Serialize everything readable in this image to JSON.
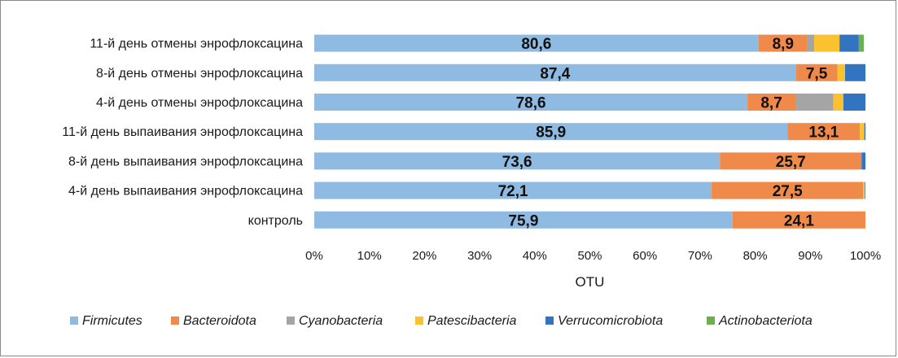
{
  "chart_data": {
    "type": "bar",
    "orientation": "horizontal",
    "stacked": "percent",
    "categories": [
      "11-й день отмены энрофлоксацина",
      "8-й день отмены энрофлоксацина",
      "4-й день отмены энрофлоксацина",
      "11-й день выпаивания энрофлоксацина",
      "8-й день выпаивания энрофлоксацина",
      "4-й день выпаивания энрофлоксацина",
      "контроль"
    ],
    "series": [
      {
        "name": "Firmicutes",
        "color": "#8fbbe3",
        "values": [
          80.6,
          87.4,
          78.6,
          85.9,
          73.6,
          72.1,
          75.9
        ]
      },
      {
        "name": "Bacteroidota",
        "color": "#f08a4b",
        "values": [
          8.9,
          7.5,
          8.7,
          13.1,
          25.7,
          27.5,
          24.1
        ]
      },
      {
        "name": "Cyanobacteria",
        "color": "#a5a5a5",
        "values": [
          1.2,
          0,
          6.9,
          0,
          0,
          0,
          0
        ]
      },
      {
        "name": "Patescibacteria",
        "color": "#fcc12e",
        "values": [
          4.6,
          1.4,
          1.8,
          0.8,
          0,
          0.3,
          0
        ]
      },
      {
        "name": "Verrucomicrobiota",
        "color": "#3274c0",
        "values": [
          3.5,
          3.7,
          4.0,
          0.2,
          0.7,
          0.1,
          0
        ]
      },
      {
        "name": "Actinobacteriota",
        "color": "#6ab04c",
        "values": [
          0.9,
          0,
          0,
          0,
          0,
          0,
          0
        ]
      }
    ],
    "data_labels": [
      [
        "80,6",
        "8,9"
      ],
      [
        "87,4",
        "7,5"
      ],
      [
        "78,6",
        "8,7"
      ],
      [
        "85,9",
        "13,1"
      ],
      [
        "73,6",
        "25,7"
      ],
      [
        "72,1",
        "27,5"
      ],
      [
        "75,9",
        "24,1"
      ]
    ],
    "xticks": [
      "0%",
      "10%",
      "20%",
      "30%",
      "40%",
      "50%",
      "60%",
      "70%",
      "80%",
      "90%",
      "100%"
    ],
    "xlim": [
      0,
      100
    ],
    "xlabel": "OTU",
    "ylabel": "",
    "title": "",
    "legend_position": "bottom",
    "grid": false
  }
}
